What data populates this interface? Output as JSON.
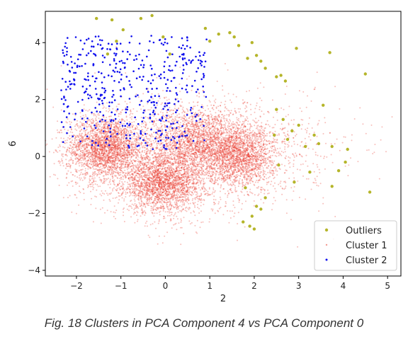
{
  "caption": "Fig. 18 Clusters in PCA Component 4 vs PCA Component 0",
  "chart_data": {
    "type": "scatter",
    "xlabel": "2",
    "ylabel": "6",
    "xlim": [
      -2.7,
      5.3
    ],
    "ylim": [
      -4.2,
      5.1
    ],
    "xticks": [
      -2,
      -1,
      0,
      1,
      2,
      3,
      4,
      5
    ],
    "yticks": [
      -4,
      -2,
      0,
      2,
      4
    ],
    "grid": false,
    "legend_position": "lower-right",
    "series": [
      {
        "name": "Outliers",
        "color": "#b5b52a",
        "marker": "dot",
        "points": [
          [
            -1.55,
            4.85
          ],
          [
            -1.3,
            3.6
          ],
          [
            -1.2,
            4.8
          ],
          [
            -1.1,
            4.05
          ],
          [
            -0.95,
            4.45
          ],
          [
            -0.55,
            4.85
          ],
          [
            -0.3,
            4.95
          ],
          [
            -0.05,
            4.2
          ],
          [
            0.1,
            3.6
          ],
          [
            0.9,
            4.5
          ],
          [
            1.0,
            4.05
          ],
          [
            1.2,
            4.3
          ],
          [
            1.45,
            4.35
          ],
          [
            1.55,
            4.2
          ],
          [
            1.65,
            3.9
          ],
          [
            1.85,
            3.45
          ],
          [
            1.95,
            4.0
          ],
          [
            2.05,
            3.55
          ],
          [
            2.15,
            3.35
          ],
          [
            2.25,
            3.1
          ],
          [
            2.5,
            2.8
          ],
          [
            2.6,
            2.85
          ],
          [
            2.7,
            2.65
          ],
          [
            2.95,
            3.8
          ],
          [
            3.7,
            3.65
          ],
          [
            4.5,
            2.9
          ],
          [
            3.55,
            1.8
          ],
          [
            2.5,
            1.65
          ],
          [
            2.65,
            1.3
          ],
          [
            2.45,
            0.75
          ],
          [
            2.75,
            0.6
          ],
          [
            3.15,
            0.35
          ],
          [
            3.35,
            0.75
          ],
          [
            3.45,
            0.45
          ],
          [
            3.75,
            0.35
          ],
          [
            4.1,
            0.25
          ],
          [
            4.05,
            -0.2
          ],
          [
            3.9,
            -0.5
          ],
          [
            3.25,
            -0.55
          ],
          [
            2.9,
            -0.9
          ],
          [
            3.75,
            -1.05
          ],
          [
            4.6,
            -1.25
          ],
          [
            2.25,
            -1.45
          ],
          [
            2.05,
            -1.75
          ],
          [
            2.15,
            -1.85
          ],
          [
            1.95,
            -2.1
          ],
          [
            1.75,
            -2.3
          ],
          [
            1.9,
            -2.45
          ],
          [
            2.0,
            -2.55
          ],
          [
            1.8,
            -1.1
          ],
          [
            2.55,
            -0.3
          ],
          [
            2.85,
            0.9
          ],
          [
            3.0,
            1.1
          ]
        ]
      },
      {
        "name": "Cluster 1",
        "color": "#e8392a",
        "marker": "dot",
        "blobs": [
          {
            "cx": -1.35,
            "cy": 0.3,
            "sx": 0.42,
            "sy": 0.55,
            "n": 2400
          },
          {
            "cx": -0.05,
            "cy": -0.95,
            "sx": 0.45,
            "sy": 0.5,
            "n": 2200
          },
          {
            "cx": 0.75,
            "cy": 0.55,
            "sx": 0.5,
            "sy": 0.6,
            "n": 1700
          },
          {
            "cx": 1.7,
            "cy": 0.05,
            "sx": 0.38,
            "sy": 0.55,
            "n": 1700
          },
          {
            "cx": 0.35,
            "cy": 0.0,
            "sx": 1.25,
            "sy": 1.0,
            "n": 1800
          },
          {
            "cx": 2.6,
            "cy": 0.4,
            "sx": 0.9,
            "sy": 0.9,
            "n": 300
          }
        ]
      },
      {
        "name": "Cluster 2",
        "color": "#1010ee",
        "marker": "dot",
        "region": {
          "x": [
            -2.35,
            0.95
          ],
          "y": [
            0.25,
            4.25
          ],
          "n": 520
        }
      }
    ]
  }
}
